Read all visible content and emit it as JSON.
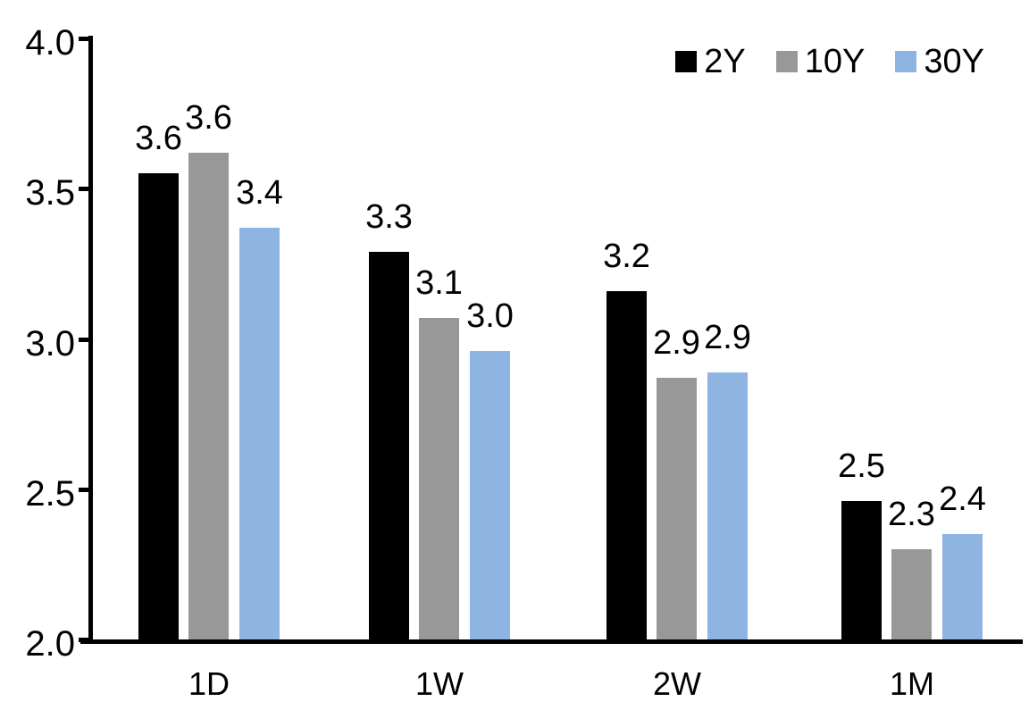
{
  "chart_data": {
    "type": "bar",
    "title": "",
    "xlabel": "",
    "ylabel": "",
    "categories": [
      "1D",
      "1W",
      "2W",
      "1M"
    ],
    "series": [
      {
        "name": "2Y",
        "color": "#000000",
        "values": [
          3.55,
          3.29,
          3.16,
          2.46
        ],
        "labels": [
          "3.6",
          "3.3",
          "3.2",
          "2.5"
        ]
      },
      {
        "name": "10Y",
        "color": "#989898",
        "values": [
          3.62,
          3.07,
          2.87,
          2.3
        ],
        "labels": [
          "3.6",
          "3.1",
          "2.9",
          "2.3"
        ]
      },
      {
        "name": "30Y",
        "color": "#8EB4E2",
        "values": [
          3.37,
          2.96,
          2.89,
          2.35
        ],
        "labels": [
          "3.4",
          "3.0",
          "2.9",
          "2.4"
        ]
      }
    ],
    "ylim": [
      2.0,
      4.0
    ],
    "yticks": [
      {
        "value": 4.0,
        "label": "4.0"
      },
      {
        "value": 3.5,
        "label": "3.5"
      },
      {
        "value": 3.0,
        "label": "3.0"
      },
      {
        "value": 2.5,
        "label": "2.5"
      },
      {
        "value": 2.0,
        "label": "2.0"
      }
    ],
    "grid": false,
    "legend_position": "top-right",
    "axis_color": "#000000",
    "text_color": "#000000",
    "background_color": "#ffffff"
  }
}
